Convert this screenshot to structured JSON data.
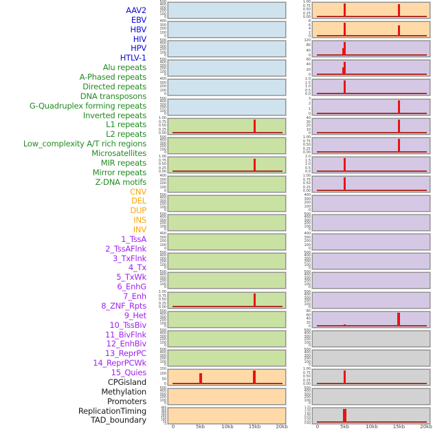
{
  "chart_data": {
    "type": "bar",
    "title": "",
    "x_ticks": [
      "0",
      "5kb",
      "10kb",
      "15kb",
      "20kb"
    ],
    "x_range_kb": [
      0,
      20
    ],
    "legend_groups": {
      "virus": {
        "label_color": "#0b0bd8",
        "panel_fill": "#cfe3ee"
      },
      "repeat": {
        "label_color": "#228B22",
        "panel_fill": "#c9e1a2"
      },
      "sv": {
        "label_color": "#FFA500",
        "panel_fill": "#ffd9a8"
      },
      "chromhmm": {
        "label_color": "#A021EF",
        "panel_fill": "#d5c8e4"
      },
      "other": {
        "label_color": "#1a1a1a",
        "panel_fill": "#d2d2d2"
      }
    },
    "accent_colors": {
      "spike": "#e81414",
      "baseline": "#ae2f24",
      "panel_border": "#8f8f8f"
    },
    "panels": [
      {
        "name": "AAV2",
        "group": "virus",
        "yticks": [
          "500",
          "400",
          "300",
          "200",
          "100",
          "0"
        ],
        "baseline": false,
        "spikes": []
      },
      {
        "name": "EBV",
        "group": "virus",
        "yticks": [
          "400",
          "300",
          "200",
          "100",
          "0"
        ],
        "baseline": false,
        "spikes": []
      },
      {
        "name": "HBV",
        "group": "virus",
        "yticks": [
          "500",
          "400",
          "300",
          "200",
          "100",
          "0"
        ],
        "baseline": false,
        "spikes": []
      },
      {
        "name": "HIV",
        "group": "virus",
        "yticks": [
          "500",
          "400",
          "300",
          "200",
          "100",
          "0"
        ],
        "baseline": false,
        "spikes": []
      },
      {
        "name": "HPV",
        "group": "virus",
        "yticks": [
          "400",
          "300",
          "200",
          "100",
          "0"
        ],
        "baseline": false,
        "spikes": []
      },
      {
        "name": "HTLV-1",
        "group": "virus",
        "yticks": [
          "500",
          "400",
          "300",
          "200",
          "100",
          "0"
        ],
        "baseline": false,
        "spikes": []
      },
      {
        "name": "Alu repeats",
        "group": "repeat",
        "yticks": [
          "1.00",
          "0.75",
          "0.50",
          "0.25",
          "0.00"
        ],
        "baseline": true,
        "spikes": [
          {
            "x_kb": 15,
            "value": 1.0,
            "frac": 1.0,
            "w": 3
          }
        ]
      },
      {
        "name": "A-Phased repeats",
        "group": "repeat",
        "yticks": [
          "500",
          "400",
          "300",
          "200",
          "100",
          "0"
        ],
        "baseline": false,
        "spikes": []
      },
      {
        "name": "Directed repeats",
        "group": "repeat",
        "yticks": [
          "1.00",
          "0.75",
          "0.50",
          "0.25",
          "0.00"
        ],
        "baseline": true,
        "spikes": [
          {
            "x_kb": 15,
            "value": 0.95,
            "frac": 0.95,
            "w": 3
          }
        ]
      },
      {
        "name": "DNA transposons",
        "group": "repeat",
        "yticks": [
          "400",
          "300",
          "200",
          "100",
          "0"
        ],
        "baseline": false,
        "spikes": []
      },
      {
        "name": "G-Quadruplex forming repeats",
        "group": "repeat",
        "yticks": [
          "500",
          "400",
          "300",
          "200",
          "100",
          "0"
        ],
        "baseline": false,
        "spikes": []
      },
      {
        "name": "Inverted repeats",
        "group": "repeat",
        "yticks": [
          "500",
          "400",
          "300",
          "200",
          "100",
          "0"
        ],
        "baseline": false,
        "spikes": []
      },
      {
        "name": "L1 repeats",
        "group": "repeat",
        "yticks": [
          "400",
          "300",
          "200",
          "100",
          "0"
        ],
        "baseline": false,
        "spikes": []
      },
      {
        "name": "L2 repeats",
        "group": "repeat",
        "yticks": [
          "500",
          "400",
          "300",
          "200",
          "100",
          "0"
        ],
        "baseline": false,
        "spikes": []
      },
      {
        "name": "Low_complexity A/T rich regions",
        "group": "repeat",
        "yticks": [
          "500",
          "400",
          "300",
          "200",
          "100",
          "0"
        ],
        "baseline": false,
        "spikes": []
      },
      {
        "name": "Microsatellites",
        "group": "repeat",
        "yticks": [
          "1.00",
          "0.75",
          "0.50",
          "0.25",
          "0.00"
        ],
        "baseline": true,
        "spikes": [
          {
            "x_kb": 15,
            "value": 1.0,
            "frac": 1.0,
            "w": 3
          }
        ]
      },
      {
        "name": "MIR repeats",
        "group": "repeat",
        "yticks": [
          "500",
          "400",
          "300",
          "200",
          "100",
          "0"
        ],
        "baseline": false,
        "spikes": []
      },
      {
        "name": "Mirror repeats",
        "group": "repeat",
        "yticks": [
          "500",
          "400",
          "300",
          "200",
          "100",
          "0"
        ],
        "baseline": false,
        "spikes": []
      },
      {
        "name": "Z-DNA motifs",
        "group": "repeat",
        "yticks": [
          "500",
          "400",
          "300",
          "200",
          "100",
          "0"
        ],
        "baseline": false,
        "spikes": []
      },
      {
        "name": "CNV",
        "group": "sv",
        "yticks": [
          "150",
          "100",
          "50",
          "0"
        ],
        "baseline": true,
        "spikes": [
          {
            "x_kb": 5,
            "value": 115,
            "frac": 0.78,
            "w": 4
          },
          {
            "x_kb": 15,
            "value": 150,
            "frac": 1.0,
            "w": 4
          }
        ]
      },
      {
        "name": "DEL",
        "group": "sv",
        "yticks": [
          "500",
          "400",
          "300",
          "200",
          "100",
          "0"
        ],
        "baseline": false,
        "spikes": []
      },
      {
        "name": "DUP",
        "group": "sv",
        "yticks": [
          "400",
          "350",
          "300",
          "250",
          "200",
          "150",
          "100",
          "50",
          "0"
        ],
        "dense": true,
        "baseline": false,
        "spikes": []
      },
      {
        "name": "INS",
        "group": "sv",
        "yticks": [
          "1.00",
          "0.75",
          "0.50",
          "0.25",
          "0.00"
        ],
        "baseline": true,
        "spikes": [
          {
            "x_kb": 5,
            "value": 1.0,
            "frac": 1.0,
            "w": 3
          },
          {
            "x_kb": 15,
            "value": 0.95,
            "frac": 0.95,
            "w": 3
          }
        ]
      },
      {
        "name": "INV",
        "group": "sv",
        "yticks": [
          "8",
          "6",
          "4",
          "2",
          "0"
        ],
        "baseline": true,
        "spikes": [
          {
            "x_kb": 5,
            "value": 8,
            "frac": 1.0,
            "w": 3
          },
          {
            "x_kb": 15,
            "value": 6.5,
            "frac": 0.81,
            "w": 3
          }
        ]
      },
      {
        "name": "1_TssA",
        "group": "chromhmm",
        "yticks": [
          "120",
          "80",
          "40",
          "0"
        ],
        "baseline": true,
        "spikes": [
          {
            "x_kb": 5,
            "value": 120,
            "frac": 1.0,
            "w": 3,
            "shoulder": true
          }
        ]
      },
      {
        "name": "2_TssAFlnk",
        "group": "chromhmm",
        "yticks": [
          "60",
          "40",
          "20",
          "0"
        ],
        "baseline": true,
        "spikes": [
          {
            "x_kb": 5,
            "value": 58,
            "frac": 0.97,
            "w": 3,
            "shoulder": true
          }
        ]
      },
      {
        "name": "3_TxFlnk",
        "group": "chromhmm",
        "yticks": [
          "2.0",
          "1.5",
          "1.0",
          "0.5",
          "0.0"
        ],
        "baseline": true,
        "spikes": [
          {
            "x_kb": 5,
            "value": 2.0,
            "frac": 1.0,
            "w": 3
          }
        ]
      },
      {
        "name": "4_Tx",
        "group": "chromhmm",
        "yticks": [
          "3",
          "2",
          "1",
          "0"
        ],
        "baseline": true,
        "spikes": [
          {
            "x_kb": 15,
            "value": 3,
            "frac": 1.0,
            "w": 3
          }
        ]
      },
      {
        "name": "5_TxWk",
        "group": "chromhmm",
        "yticks": [
          "40",
          "30",
          "20",
          "10",
          "0"
        ],
        "baseline": true,
        "spikes": [
          {
            "x_kb": 15,
            "value": 40,
            "frac": 1.0,
            "w": 3
          }
        ]
      },
      {
        "name": "6_EnhG",
        "group": "chromhmm",
        "yticks": [
          "1.00",
          "0.75",
          "0.50",
          "0.25",
          "0.00"
        ],
        "baseline": true,
        "spikes": [
          {
            "x_kb": 15,
            "value": 1.0,
            "frac": 1.0,
            "w": 3
          }
        ]
      },
      {
        "name": "7_Enh",
        "group": "chromhmm",
        "yticks": [
          "2.0",
          "1.5",
          "1.0",
          "0.5",
          "0.0"
        ],
        "baseline": true,
        "spikes": [
          {
            "x_kb": 5,
            "value": 2.0,
            "frac": 1.0,
            "w": 3
          }
        ]
      },
      {
        "name": "8_ZNF_Rpts",
        "group": "chromhmm",
        "yticks": [
          "1.00",
          "0.75",
          "0.50",
          "0.25",
          "0.00"
        ],
        "baseline": true,
        "spikes": [
          {
            "x_kb": 5,
            "value": 1.0,
            "frac": 1.0,
            "w": 3
          }
        ]
      },
      {
        "name": "9_Het",
        "group": "chromhmm",
        "yticks": [
          "400",
          "300",
          "200",
          "100",
          "0"
        ],
        "baseline": false,
        "spikes": []
      },
      {
        "name": "10_TssBiv",
        "group": "chromhmm",
        "yticks": [
          "500",
          "400",
          "300",
          "200",
          "100",
          "0"
        ],
        "baseline": false,
        "spikes": []
      },
      {
        "name": "11_BivFlnk",
        "group": "chromhmm",
        "yticks": [
          "400",
          "300",
          "200",
          "100",
          "0"
        ],
        "baseline": false,
        "spikes": []
      },
      {
        "name": "12_EnhBiv",
        "group": "chromhmm",
        "yticks": [
          "500",
          "400",
          "300",
          "200",
          "100",
          "0"
        ],
        "baseline": false,
        "spikes": []
      },
      {
        "name": "13_ReprPC",
        "group": "chromhmm",
        "yticks": [
          "500",
          "400",
          "300",
          "200",
          "100",
          "0"
        ],
        "baseline": false,
        "spikes": []
      },
      {
        "name": "14_ReprPCWk",
        "group": "chromhmm",
        "yticks": [
          "500",
          "400",
          "300",
          "200",
          "100",
          "0"
        ],
        "baseline": false,
        "spikes": []
      },
      {
        "name": "15_Quies",
        "group": "chromhmm",
        "yticks": [
          "80",
          "60",
          "40",
          "20",
          "0"
        ],
        "baseline": true,
        "spikes": [
          {
            "x_kb": 5,
            "value": 8,
            "frac": 0.1,
            "w": 3
          },
          {
            "x_kb": 15,
            "value": 85,
            "frac": 1.0,
            "w": 4
          }
        ]
      },
      {
        "name": "CPGisland",
        "group": "other",
        "yticks": [
          "500",
          "400",
          "300",
          "200",
          "100",
          "0"
        ],
        "baseline": false,
        "spikes": []
      },
      {
        "name": "Methylation",
        "group": "other",
        "yticks": [
          "500",
          "400",
          "300",
          "200",
          "100",
          "0"
        ],
        "baseline": false,
        "spikes": []
      },
      {
        "name": "Promoters",
        "group": "other",
        "yticks": [
          "1.00",
          "0.75",
          "0.50",
          "0.25",
          "0.00"
        ],
        "baseline": true,
        "spikes": [
          {
            "x_kb": 5,
            "value": 1.0,
            "frac": 1.0,
            "w": 3
          }
        ]
      },
      {
        "name": "ReplicationTiming",
        "group": "other",
        "yticks": [
          "500",
          "400",
          "300",
          "200",
          "100",
          "0"
        ],
        "baseline": false,
        "spikes": []
      },
      {
        "name": "TAD_boundary",
        "group": "other",
        "yticks": [
          "1.75",
          "1.50",
          "1.25",
          "1.00",
          "0.75",
          "0.50",
          "0.25",
          "0.00"
        ],
        "dense": true,
        "baseline": true,
        "spikes": [
          {
            "x_kb": 5,
            "value": 1.75,
            "frac": 1.0,
            "w": 5
          }
        ]
      }
    ]
  }
}
